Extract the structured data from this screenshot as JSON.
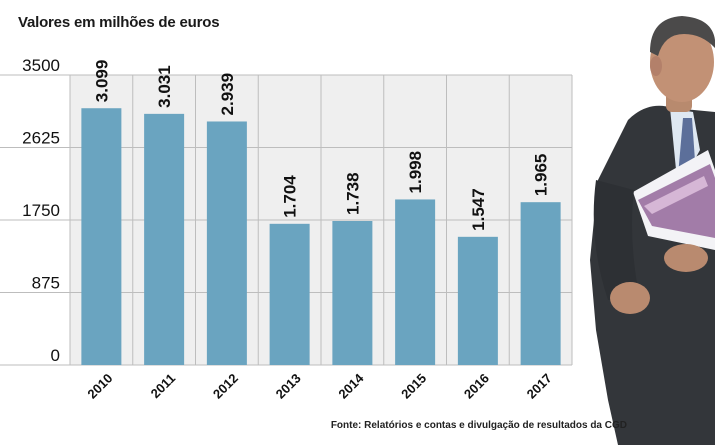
{
  "chart_data": {
    "type": "bar",
    "title": "Valores em milhões de euros",
    "categories": [
      "2010",
      "2011",
      "2012",
      "2013",
      "2014",
      "2015",
      "2016",
      "2017"
    ],
    "values": [
      3099,
      3031,
      2939,
      1704,
      1738,
      1998,
      1547,
      1965
    ],
    "value_labels": [
      "3.099",
      "3.031",
      "2.939",
      "1.704",
      "1.738",
      "1.998",
      "1.547",
      "1.965"
    ],
    "yticks": [
      0,
      875,
      1750,
      2625,
      3500
    ],
    "ytick_labels": [
      "0",
      "875",
      "1750",
      "2625",
      "3500"
    ],
    "ylim": [
      0,
      3500
    ],
    "xlabel": "",
    "ylabel": "",
    "grid": true,
    "bar_color": "#6aa4c0",
    "grid_color": "#bdbdbd",
    "background_color": "#efefef"
  },
  "source": "Fonte: Relatórios e contas e divulgação de resultados da CGD",
  "photo": {
    "icon": "person-holding-report-photo"
  }
}
